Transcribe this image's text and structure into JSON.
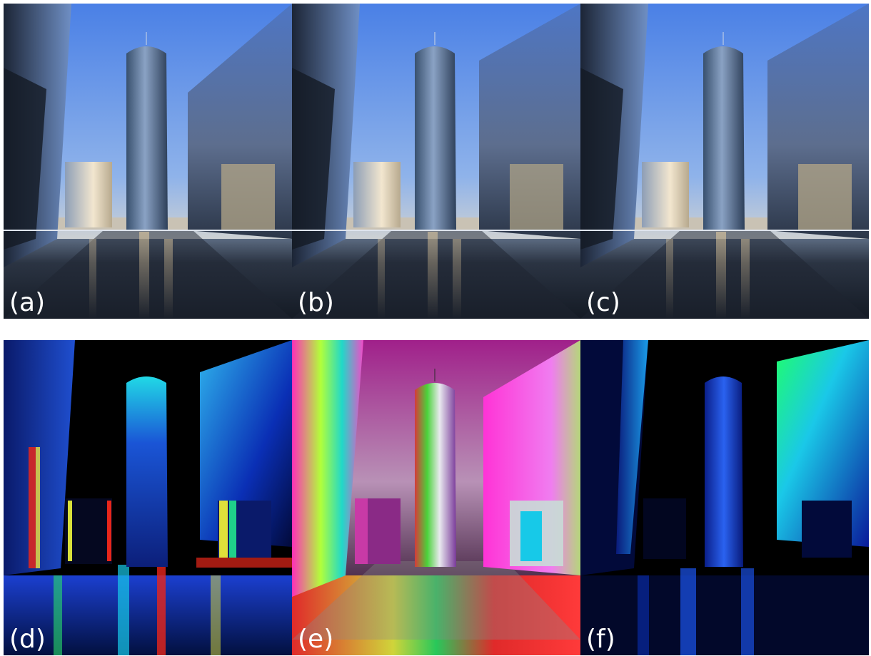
{
  "figure": {
    "panels": [
      {
        "label": "(a)",
        "render": "photo"
      },
      {
        "label": "(b)",
        "render": "photo"
      },
      {
        "label": "(c)",
        "render": "photo"
      },
      {
        "label": "(d)",
        "render": "false-color-jet"
      },
      {
        "label": "(e)",
        "render": "false-color-hue"
      },
      {
        "label": "(f)",
        "render": "false-color-blue"
      }
    ]
  },
  "colors": {
    "sky_top": "#4f86e6",
    "sky_horizon": "#ead9c0",
    "false_color_background": "#000000",
    "label_text": "#ffffff"
  }
}
